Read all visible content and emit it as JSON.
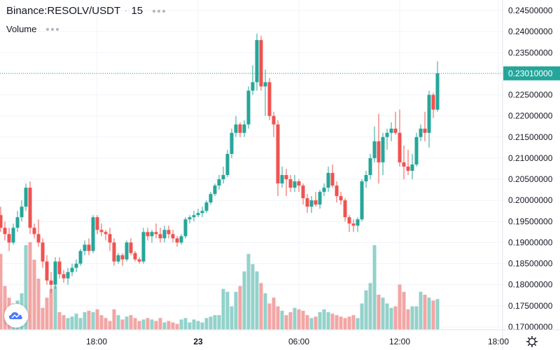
{
  "legend": {
    "symbol": "Binance:RESOLV/USDT",
    "interval": "15",
    "volume_label": "Volume"
  },
  "icons": {
    "more": "more-dots-icon",
    "logo": "tradingview-cloud-icon",
    "settings": "gear-icon"
  },
  "colors": {
    "up": "#26a69a",
    "down": "#ef5350",
    "up_volume": "#93d2cb",
    "down_volume": "#f2a6a5",
    "last_price_line": "#26a69a"
  },
  "chart_data": {
    "type": "candlestick",
    "symbol": "Binance:RESOLV/USDT",
    "interval_minutes": 15,
    "y_range": [
      0.1695,
      0.2465
    ],
    "y_ticks": [
      "0.24500000",
      "0.24000000",
      "0.23500000",
      "0.23000000",
      "0.22500000",
      "0.22000000",
      "0.21500000",
      "0.21000000",
      "0.20500000",
      "0.20000000",
      "0.19500000",
      "0.19000000",
      "0.18500000",
      "0.18000000",
      "0.17500000",
      "0.17000000"
    ],
    "x_ticks": [
      "18:00",
      "23",
      "06:00",
      "12:00",
      "18:00"
    ],
    "last_price": "0.23010000",
    "candles": [
      [
        0.1965,
        0.1985,
        0.1925,
        0.1935
      ],
      [
        0.1935,
        0.195,
        0.1905,
        0.192
      ],
      [
        0.192,
        0.1935,
        0.188,
        0.19
      ],
      [
        0.19,
        0.1945,
        0.1895,
        0.1935
      ],
      [
        0.1935,
        0.1975,
        0.1925,
        0.196
      ],
      [
        0.196,
        0.2,
        0.195,
        0.1985
      ],
      [
        0.1985,
        0.204,
        0.1975,
        0.203
      ],
      [
        0.203,
        0.2045,
        0.192,
        0.1935
      ],
      [
        0.1935,
        0.1945,
        0.191,
        0.192
      ],
      [
        0.192,
        0.1955,
        0.189,
        0.19
      ],
      [
        0.19,
        0.191,
        0.184,
        0.1855
      ],
      [
        0.1855,
        0.187,
        0.18,
        0.181
      ],
      [
        0.181,
        0.183,
        0.178,
        0.18
      ],
      [
        0.18,
        0.1865,
        0.179,
        0.1855
      ],
      [
        0.1855,
        0.1865,
        0.1815,
        0.1825
      ],
      [
        0.1825,
        0.1835,
        0.1805,
        0.1815
      ],
      [
        0.1815,
        0.184,
        0.18,
        0.183
      ],
      [
        0.183,
        0.185,
        0.182,
        0.184
      ],
      [
        0.184,
        0.186,
        0.183,
        0.185
      ],
      [
        0.185,
        0.1885,
        0.1845,
        0.188
      ],
      [
        0.188,
        0.1905,
        0.187,
        0.1895
      ],
      [
        0.1895,
        0.191,
        0.187,
        0.188
      ],
      [
        0.188,
        0.1965,
        0.1875,
        0.196
      ],
      [
        0.196,
        0.1965,
        0.192,
        0.193
      ],
      [
        0.193,
        0.1945,
        0.1915,
        0.1925
      ],
      [
        0.1925,
        0.193,
        0.1905,
        0.192
      ],
      [
        0.192,
        0.1935,
        0.188,
        0.19
      ],
      [
        0.19,
        0.191,
        0.1845,
        0.1855
      ],
      [
        0.1855,
        0.1875,
        0.185,
        0.187
      ],
      [
        0.187,
        0.1875,
        0.1845,
        0.186
      ],
      [
        0.186,
        0.1905,
        0.1855,
        0.19
      ],
      [
        0.19,
        0.191,
        0.187,
        0.1875
      ],
      [
        0.1875,
        0.188,
        0.1855,
        0.186
      ],
      [
        0.186,
        0.1865,
        0.185,
        0.1855
      ],
      [
        0.1855,
        0.1935,
        0.185,
        0.1925
      ],
      [
        0.1925,
        0.1935,
        0.1905,
        0.1915
      ],
      [
        0.1915,
        0.193,
        0.19,
        0.1925
      ],
      [
        0.1925,
        0.1945,
        0.191,
        0.192
      ],
      [
        0.192,
        0.1935,
        0.19,
        0.191
      ],
      [
        0.191,
        0.194,
        0.19,
        0.193
      ],
      [
        0.193,
        0.194,
        0.191,
        0.192
      ],
      [
        0.192,
        0.193,
        0.19,
        0.191
      ],
      [
        0.191,
        0.1915,
        0.189,
        0.19
      ],
      [
        0.19,
        0.192,
        0.1895,
        0.1915
      ],
      [
        0.1915,
        0.196,
        0.191,
        0.1955
      ],
      [
        0.1955,
        0.1965,
        0.1945,
        0.196
      ],
      [
        0.196,
        0.1975,
        0.195,
        0.1965
      ],
      [
        0.1965,
        0.198,
        0.196,
        0.197
      ],
      [
        0.197,
        0.1985,
        0.196,
        0.1975
      ],
      [
        0.1975,
        0.2,
        0.197,
        0.1995
      ],
      [
        0.1995,
        0.202,
        0.199,
        0.2015
      ],
      [
        0.2015,
        0.204,
        0.201,
        0.2035
      ],
      [
        0.2035,
        0.206,
        0.2025,
        0.205
      ],
      [
        0.205,
        0.208,
        0.204,
        0.206
      ],
      [
        0.206,
        0.212,
        0.2055,
        0.211
      ],
      [
        0.211,
        0.217,
        0.21,
        0.216
      ],
      [
        0.216,
        0.22,
        0.215,
        0.218
      ],
      [
        0.218,
        0.2185,
        0.215,
        0.216
      ],
      [
        0.216,
        0.219,
        0.215,
        0.218
      ],
      [
        0.218,
        0.227,
        0.217,
        0.226
      ],
      [
        0.226,
        0.232,
        0.225,
        0.228
      ],
      [
        0.228,
        0.2395,
        0.226,
        0.238
      ],
      [
        0.238,
        0.239,
        0.226,
        0.227
      ],
      [
        0.227,
        0.231,
        0.22,
        0.228
      ],
      [
        0.228,
        0.229,
        0.219,
        0.22
      ],
      [
        0.22,
        0.221,
        0.215,
        0.218
      ],
      [
        0.218,
        0.219,
        0.201,
        0.204
      ],
      [
        0.204,
        0.208,
        0.203,
        0.206
      ],
      [
        0.206,
        0.2075,
        0.201,
        0.205
      ],
      [
        0.205,
        0.206,
        0.202,
        0.203
      ],
      [
        0.203,
        0.206,
        0.202,
        0.2045
      ],
      [
        0.2045,
        0.205,
        0.202,
        0.2035
      ],
      [
        0.2035,
        0.204,
        0.199,
        0.2005
      ],
      [
        0.2005,
        0.2015,
        0.197,
        0.1985
      ],
      [
        0.1985,
        0.201,
        0.197,
        0.2
      ],
      [
        0.2,
        0.202,
        0.1985,
        0.199
      ],
      [
        0.199,
        0.2025,
        0.198,
        0.202
      ],
      [
        0.202,
        0.204,
        0.201,
        0.203
      ],
      [
        0.203,
        0.208,
        0.202,
        0.2065
      ],
      [
        0.2065,
        0.2085,
        0.203,
        0.2035
      ],
      [
        0.2035,
        0.2045,
        0.1995,
        0.201
      ],
      [
        0.201,
        0.202,
        0.199,
        0.2
      ],
      [
        0.2,
        0.2005,
        0.195,
        0.196
      ],
      [
        0.196,
        0.1965,
        0.1925,
        0.1945
      ],
      [
        0.1945,
        0.1955,
        0.1925,
        0.194
      ],
      [
        0.194,
        0.196,
        0.1925,
        0.1955
      ],
      [
        0.1955,
        0.205,
        0.195,
        0.2045
      ],
      [
        0.2045,
        0.207,
        0.203,
        0.206
      ],
      [
        0.206,
        0.211,
        0.205,
        0.21
      ],
      [
        0.21,
        0.2175,
        0.209,
        0.214
      ],
      [
        0.214,
        0.2205,
        0.204,
        0.209
      ],
      [
        0.209,
        0.216,
        0.206,
        0.215
      ],
      [
        0.215,
        0.217,
        0.212,
        0.216
      ],
      [
        0.216,
        0.2185,
        0.214,
        0.217
      ],
      [
        0.217,
        0.221,
        0.2155,
        0.216
      ],
      [
        0.216,
        0.2215,
        0.208,
        0.209
      ],
      [
        0.209,
        0.213,
        0.205,
        0.208
      ],
      [
        0.208,
        0.212,
        0.206,
        0.207
      ],
      [
        0.207,
        0.211,
        0.205,
        0.2085
      ],
      [
        0.2085,
        0.216,
        0.208,
        0.215
      ],
      [
        0.215,
        0.218,
        0.214,
        0.217
      ],
      [
        0.217,
        0.221,
        0.214,
        0.216
      ],
      [
        0.216,
        0.226,
        0.2125,
        0.225
      ],
      [
        0.225,
        0.2255,
        0.2195,
        0.2215
      ],
      [
        0.2215,
        0.233,
        0.221,
        0.2301
      ]
    ],
    "volumes": [
      0.52,
      0.3,
      0.22,
      0.18,
      0.2,
      0.25,
      0.58,
      0.6,
      0.48,
      0.35,
      0.15,
      0.22,
      0.28,
      0.3,
      0.12,
      0.1,
      0.08,
      0.09,
      0.11,
      0.08,
      0.12,
      0.13,
      0.12,
      0.14,
      0.1,
      0.08,
      0.06,
      0.14,
      0.1,
      0.07,
      0.09,
      0.1,
      0.08,
      0.06,
      0.07,
      0.08,
      0.07,
      0.06,
      0.08,
      0.05,
      0.06,
      0.05,
      0.04,
      0.07,
      0.08,
      0.05,
      0.07,
      0.06,
      0.05,
      0.08,
      0.09,
      0.1,
      0.1,
      0.28,
      0.26,
      0.16,
      0.26,
      0.3,
      0.4,
      0.52,
      0.45,
      0.4,
      0.32,
      0.25,
      0.18,
      0.22,
      0.16,
      0.13,
      0.1,
      0.12,
      0.15,
      0.14,
      0.13,
      0.1,
      0.08,
      0.09,
      0.12,
      0.14,
      0.12,
      0.11,
      0.1,
      0.09,
      0.08,
      0.09,
      0.1,
      0.08,
      0.18,
      0.27,
      0.32,
      0.58,
      0.24,
      0.22,
      0.18,
      0.15,
      0.16,
      0.31,
      0.26,
      0.14,
      0.16,
      0.16,
      0.26,
      0.24,
      0.22,
      0.2,
      0.21
    ]
  }
}
